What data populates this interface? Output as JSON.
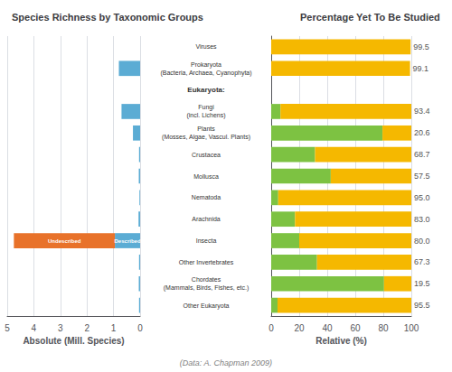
{
  "chart_data": [
    {
      "type": "bar",
      "orientation": "horizontal",
      "stacked": true,
      "grid": true,
      "title": "Species Richness by Taxonomic Groups",
      "x_label": "Absolute (Mill. Species)",
      "categories": [
        "Viruses",
        "Prokaryota\n(Bacteria, Archaea, Cyanophyta)",
        "Eukaryota:",
        "Fungi\n(incl. Lichens)",
        "Plants\n(Mosses, Algae, Vascul. Plants)",
        "Crustacea",
        "Mollusca",
        "Nematoda",
        "Arachnida",
        "Insecta",
        "Other Invertebrates",
        "Chordates\n(Mammals, Birds, Fishes, etc.)",
        "Other Eukaryota"
      ],
      "series": [
        {
          "name": "Described",
          "color": "#5BACD4",
          "values": [
            0.0,
            0.8,
            null,
            0.7,
            0.27,
            0.04,
            0.05,
            0.025,
            0.06,
            0.95,
            0.04,
            0.05,
            0.04
          ]
        },
        {
          "name": "Undescribed",
          "color": "#E8722A",
          "values": [
            0.0,
            0.0,
            null,
            0.0,
            0.0,
            0.0,
            0.0,
            0.0,
            0.0,
            3.8,
            0.0,
            0.0,
            0.0
          ]
        }
      ],
      "annotations": [
        {
          "text": "Described",
          "category": "Insecta"
        },
        {
          "text": "Undescribed",
          "category": "Insecta"
        }
      ],
      "xlim": [
        5,
        0
      ],
      "xticks": [
        5,
        4,
        3,
        2,
        1,
        0
      ]
    },
    {
      "type": "bar",
      "orientation": "horizontal",
      "stacked": true,
      "grid": true,
      "title": "Percentage Yet To Be Studied",
      "x_label": "Relative (%)",
      "categories": [
        "Viruses",
        "Prokaryota\n(Bacteria, Archaea, Cyanophyta)",
        "Eukaryota:",
        "Fungi\n(incl. Lichens)",
        "Plants\n(Mosses, Algae, Vascul. Plants)",
        "Crustacea",
        "Mollusca",
        "Nematoda",
        "Arachnida",
        "Insecta",
        "Other Invertebrates",
        "Chordates\n(Mammals, Birds, Fishes, etc.)",
        "Other Eukaryota"
      ],
      "series": [
        {
          "color": "#7DC242",
          "values": [
            0.0,
            0.0,
            null,
            6.6,
            79.4,
            31.3,
            42.5,
            5.0,
            17.0,
            20.0,
            32.7,
            80.5,
            4.5
          ]
        },
        {
          "color": "#F5B800",
          "values": [
            99.5,
            99.1,
            null,
            93.4,
            20.6,
            68.7,
            57.5,
            95.0,
            83.0,
            80.0,
            67.3,
            19.5,
            95.5
          ],
          "data_labels": true,
          "value_labels": [
            "99.5",
            "99.1",
            null,
            "93.4",
            "20.6",
            "68.7",
            "57.5",
            "95.0",
            "83.0",
            "80.0",
            "67.3",
            "19.5",
            "95.5"
          ]
        }
      ],
      "annotations": [
        {
          "text": "(Data: A. Chapman 2009)"
        }
      ],
      "xlim": [
        0,
        100
      ],
      "xticks": [
        0,
        20,
        40,
        60,
        80,
        100
      ]
    }
  ]
}
